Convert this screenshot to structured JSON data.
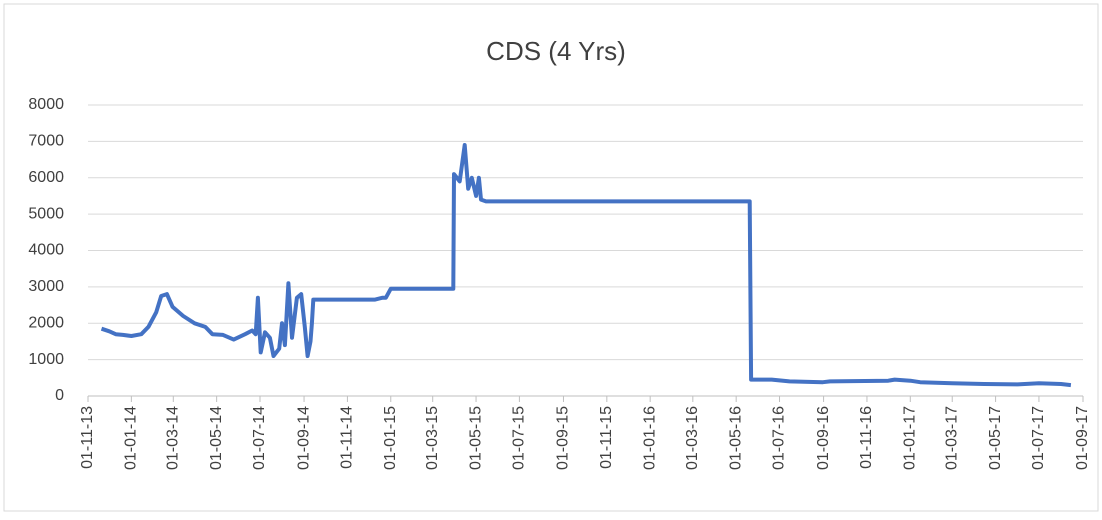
{
  "chart_data": {
    "type": "line",
    "title": "CDS (4 Yrs)",
    "x": [
      "2013-11-20",
      "2013-12-01",
      "2013-12-10",
      "2013-12-20",
      "2014-01-01",
      "2014-01-15",
      "2014-01-25",
      "2014-02-05",
      "2014-02-12",
      "2014-02-20",
      "2014-02-28",
      "2014-03-15",
      "2014-03-31",
      "2014-04-15",
      "2014-04-25",
      "2014-05-10",
      "2014-05-25",
      "2014-06-10",
      "2014-06-20",
      "2014-06-25",
      "2014-06-28",
      "2014-07-02",
      "2014-07-08",
      "2014-07-15",
      "2014-07-20",
      "2014-07-28",
      "2014-08-01",
      "2014-08-05",
      "2014-08-10",
      "2014-08-15",
      "2014-08-22",
      "2014-08-28",
      "2014-09-02",
      "2014-09-06",
      "2014-09-10",
      "2014-09-12",
      "2014-09-14",
      "2014-12-10",
      "2014-12-20",
      "2014-12-25",
      "2015-01-01",
      "2015-03-30",
      "2015-03-31",
      "2015-04-08",
      "2015-04-15",
      "2015-04-20",
      "2015-04-25",
      "2015-05-01",
      "2015-05-05",
      "2015-05-08",
      "2015-05-15",
      "2016-05-20",
      "2016-05-22",
      "2016-06-20",
      "2016-07-15",
      "2016-08-31",
      "2016-09-10",
      "2016-12-01",
      "2016-12-10",
      "2017-01-01",
      "2017-01-15",
      "2017-03-01",
      "2017-04-15",
      "2017-06-01",
      "2017-07-01",
      "2017-08-01",
      "2017-08-15"
    ],
    "series": [
      {
        "name": "CDS (4 Yrs)",
        "color": "#4472c4",
        "values": [
          1850,
          1780,
          1700,
          1680,
          1650,
          1700,
          1900,
          2300,
          2750,
          2800,
          2450,
          2200,
          2000,
          1900,
          1700,
          1680,
          1550,
          1700,
          1800,
          1700,
          2700,
          1200,
          1750,
          1600,
          1100,
          1300,
          2000,
          1400,
          3100,
          1600,
          2700,
          2800,
          1900,
          1100,
          1500,
          2000,
          2650,
          2650,
          2700,
          2700,
          2950,
          2950,
          6100,
          5900,
          6900,
          5700,
          6000,
          5500,
          6000,
          5400,
          5350,
          5350,
          450,
          450,
          400,
          380,
          400,
          420,
          450,
          420,
          380,
          350,
          330,
          320,
          350,
          330,
          300
        ]
      }
    ],
    "xlim": [
      "2013-11-01",
      "2017-09-01"
    ],
    "xticks": [
      {
        "value": "2013-11-01",
        "label": "01-11-13"
      },
      {
        "value": "2014-01-01",
        "label": "01-01-14"
      },
      {
        "value": "2014-03-01",
        "label": "01-03-14"
      },
      {
        "value": "2014-05-01",
        "label": "01-05-14"
      },
      {
        "value": "2014-07-01",
        "label": "01-07-14"
      },
      {
        "value": "2014-09-01",
        "label": "01-09-14"
      },
      {
        "value": "2014-11-01",
        "label": "01-11-14"
      },
      {
        "value": "2015-01-01",
        "label": "01-01-15"
      },
      {
        "value": "2015-03-01",
        "label": "01-03-15"
      },
      {
        "value": "2015-05-01",
        "label": "01-05-15"
      },
      {
        "value": "2015-07-01",
        "label": "01-07-15"
      },
      {
        "value": "2015-09-01",
        "label": "01-09-15"
      },
      {
        "value": "2015-11-01",
        "label": "01-11-15"
      },
      {
        "value": "2016-01-01",
        "label": "01-01-16"
      },
      {
        "value": "2016-03-01",
        "label": "01-03-16"
      },
      {
        "value": "2016-05-01",
        "label": "01-05-16"
      },
      {
        "value": "2016-07-01",
        "label": "01-07-16"
      },
      {
        "value": "2016-09-01",
        "label": "01-09-16"
      },
      {
        "value": "2016-11-01",
        "label": "01-11-16"
      },
      {
        "value": "2017-01-01",
        "label": "01-01-17"
      },
      {
        "value": "2017-03-01",
        "label": "01-03-17"
      },
      {
        "value": "2017-05-01",
        "label": "01-05-17"
      },
      {
        "value": "2017-07-01",
        "label": "01-07-17"
      },
      {
        "value": "2017-09-01",
        "label": "01-09-17"
      }
    ],
    "ylim": [
      0,
      8000
    ],
    "yticks": [
      0,
      1000,
      2000,
      3000,
      4000,
      5000,
      6000,
      7000,
      8000
    ],
    "grid": true
  }
}
